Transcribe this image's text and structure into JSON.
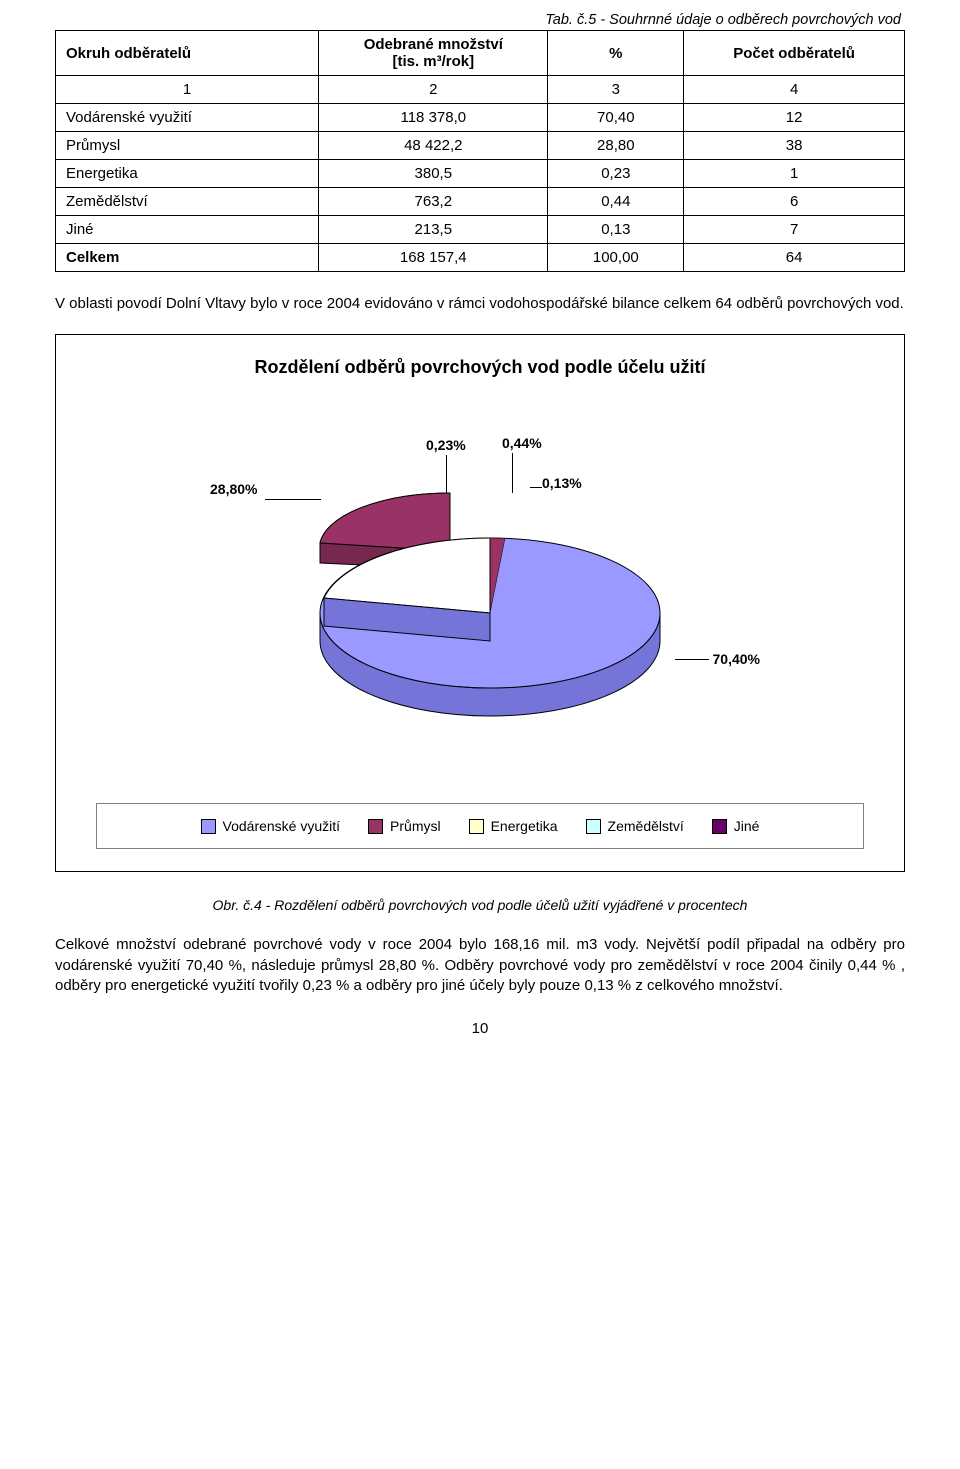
{
  "caption_top": "Tab. č.5 - Souhrnné údaje o odběrech povrchových vod",
  "table": {
    "header": {
      "col0": "Okruh odběratelů",
      "col1a": "Odebrané množství",
      "col1b": "[tis. m³/rok]",
      "col2": "%",
      "col3": "Počet odběratelů"
    },
    "numrow": [
      "1",
      "2",
      "3",
      "4"
    ],
    "rows": [
      {
        "c0": "Vodárenské využití",
        "c1": "118 378,0",
        "c2": "70,40",
        "c3": "12"
      },
      {
        "c0": "Průmysl",
        "c1": "48 422,2",
        "c2": "28,80",
        "c3": "38"
      },
      {
        "c0": "Energetika",
        "c1": "380,5",
        "c2": "0,23",
        "c3": "1"
      },
      {
        "c0": "Zemědělství",
        "c1": "763,2",
        "c2": "0,44",
        "c3": "6"
      },
      {
        "c0": "Jiné",
        "c1": "213,5",
        "c2": "0,13",
        "c3": "7"
      },
      {
        "c0": "Celkem",
        "c1": "168 157,4",
        "c2": "100,00",
        "c3": "64"
      }
    ]
  },
  "paragraph1": "V oblasti povodí Dolní Vltavy bylo v roce 2004 evidováno v rámci vodohospodářské bilance celkem 64 odběrů povrchových vod.",
  "chart": {
    "title": "Rozdělení odběrů povrchových vod podle účelu užití",
    "slices": [
      {
        "name": "Vodárenské využití",
        "pct": 70.4,
        "color": "#9999ff"
      },
      {
        "name": "Průmysl",
        "pct": 28.8,
        "color": "#993366"
      },
      {
        "name": "Energetika",
        "pct": 0.23,
        "color": "#ffffcc"
      },
      {
        "name": "Zemědělství",
        "pct": 0.44,
        "color": "#ccffff"
      },
      {
        "name": "Jiné",
        "pct": 0.13,
        "color": "#660066"
      }
    ],
    "labels": {
      "l0": "28,80%",
      "l1": "0,23%",
      "l2": "0,44%",
      "l3": "0,13%",
      "l4": "70,40%"
    },
    "legend": [
      {
        "label": "Vodárenské využití",
        "color": "#9999ff"
      },
      {
        "label": "Průmysl",
        "color": "#993366"
      },
      {
        "label": "Energetika",
        "color": "#ffffcc"
      },
      {
        "label": "Zemědělství",
        "color": "#ccffff"
      },
      {
        "label": "Jiné",
        "color": "#660066"
      }
    ]
  },
  "fig_caption": "Obr. č.4 -  Rozdělení odběrů povrchových vod podle účelů užití vyjádřené v procentech",
  "paragraph2": "Celkové množství odebrané povrchové vody v roce 2004 bylo 168,16 mil. m3 vody. Největší podíl připadal na odběry pro vodárenské využití 70,40 %, následuje průmysl 28,80 %. Odběry povrchové vody pro zemědělství v roce 2004 činily 0,44 % , odběry pro energetické využití tvořily 0,23 % a odběry pro jiné účely byly pouze  0,13 % z celkového množství.",
  "page_number": "10"
}
